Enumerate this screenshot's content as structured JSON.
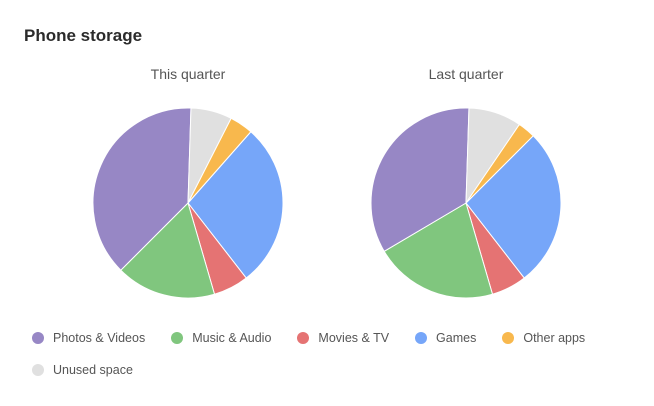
{
  "title": "Phone storage",
  "colors": {
    "Photos & Videos": "#9787c5",
    "Music & Audio": "#80c67e",
    "Movies & TV": "#e57373",
    "Games": "#76a6f9",
    "Other apps": "#f8b84d",
    "Unused space": "#e0e0e0"
  },
  "chart_data": [
    {
      "type": "pie",
      "title": "This quarter",
      "labels": [
        "Photos & Videos",
        "Music & Audio",
        "Movies & TV",
        "Games",
        "Other apps",
        "Unused space"
      ],
      "values": [
        38,
        17,
        6,
        28,
        4,
        7
      ]
    },
    {
      "type": "pie",
      "title": "Last quarter",
      "labels": [
        "Photos & Videos",
        "Music & Audio",
        "Movies & TV",
        "Games",
        "Other apps",
        "Unused space"
      ],
      "values": [
        34,
        21,
        6,
        27,
        3,
        9
      ]
    }
  ],
  "legend": [
    "Photos & Videos",
    "Music & Audio",
    "Movies & TV",
    "Games",
    "Other apps",
    "Unused space"
  ]
}
